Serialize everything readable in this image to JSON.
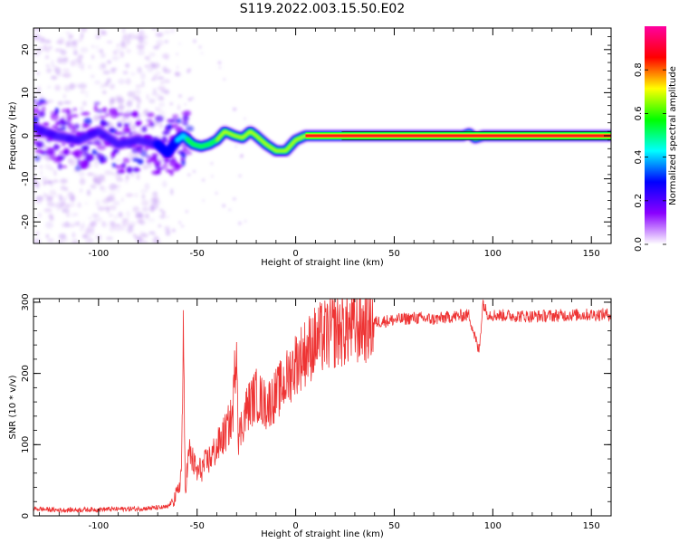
{
  "title": "S119.2022.003.15.50.E02",
  "chart_data": [
    {
      "type": "heatmap",
      "name": "spectrogram",
      "xlabel": "Height of straight line (km)",
      "ylabel": "Frequency (Hz)",
      "xlim": [
        -133,
        160
      ],
      "ylim": [
        -25,
        25
      ],
      "xticks": [
        -100,
        -50,
        0,
        50,
        100,
        150
      ],
      "xtick_labels": [
        "-100",
        "-50",
        "0",
        "50",
        "100",
        "150"
      ],
      "yticks": [
        -20,
        -10,
        0,
        10,
        20
      ],
      "ytick_labels": [
        "-20",
        "-10",
        "0",
        "10",
        "20"
      ],
      "colorbar": {
        "label": "Normalized spectral amplitude",
        "range": [
          0,
          1
        ],
        "ticks": [
          0.0,
          0.2,
          0.4,
          0.6,
          0.8
        ],
        "tick_labels": [
          "0.0",
          "0.2",
          "0.4",
          "0.6",
          "0.8"
        ],
        "colormap": [
          "#ffffff",
          "#8a00ff",
          "#0000ff",
          "#00ffff",
          "#00ff00",
          "#ffff00",
          "#ff0000",
          "#ff00a0"
        ]
      },
      "ridge_points": [
        {
          "x": -133,
          "y": 2
        },
        {
          "x": -122,
          "y": 0
        },
        {
          "x": -110,
          "y": -1
        },
        {
          "x": -100,
          "y": 1
        },
        {
          "x": -90,
          "y": -2
        },
        {
          "x": -80,
          "y": -1
        },
        {
          "x": -70,
          "y": -2
        },
        {
          "x": -65,
          "y": -4
        },
        {
          "x": -60,
          "y": -1
        },
        {
          "x": -57,
          "y": 0
        },
        {
          "x": -52,
          "y": -2
        },
        {
          "x": -48,
          "y": -2.5
        },
        {
          "x": -44,
          "y": -2
        },
        {
          "x": -40,
          "y": -1
        },
        {
          "x": -36,
          "y": 1
        },
        {
          "x": -31,
          "y": 0
        },
        {
          "x": -27,
          "y": -0.5
        },
        {
          "x": -23,
          "y": 1
        },
        {
          "x": -20,
          "y": 0
        },
        {
          "x": -15,
          "y": -2
        },
        {
          "x": -10,
          "y": -3.5
        },
        {
          "x": -5,
          "y": -3.5
        },
        {
          "x": 0,
          "y": -1
        },
        {
          "x": 5,
          "y": 0
        },
        {
          "x": 20,
          "y": 0
        },
        {
          "x": 60,
          "y": 0
        },
        {
          "x": 85,
          "y": 0
        },
        {
          "x": 88,
          "y": 0.5
        },
        {
          "x": 91,
          "y": -0.5
        },
        {
          "x": 95,
          "y": 0
        },
        {
          "x": 160,
          "y": 0
        }
      ]
    },
    {
      "type": "line",
      "name": "snr",
      "xlabel": "Height of straight line (km)",
      "ylabel": "SNR (10 * v/v)",
      "xlim": [
        -133,
        160
      ],
      "ylim": [
        0,
        305
      ],
      "xticks": [
        -100,
        -50,
        0,
        50,
        100,
        150
      ],
      "xtick_labels": [
        "-100",
        "-50",
        "0",
        "50",
        "100",
        "150"
      ],
      "yticks": [
        0,
        100,
        200,
        300
      ],
      "ytick_labels": [
        "0",
        "100",
        "200",
        "300"
      ],
      "line_color": "#ee3333",
      "x": [
        -133,
        -120,
        -100,
        -80,
        -65,
        -60,
        -58,
        -57,
        -56,
        -54,
        -50,
        -45,
        -40,
        -35,
        -32,
        -30,
        -29,
        -25,
        -20,
        -15,
        -10,
        -5,
        0,
        5,
        10,
        20,
        30,
        40,
        50,
        60,
        70,
        80,
        88,
        92,
        93,
        95,
        97,
        100,
        120,
        140,
        160
      ],
      "y": [
        10,
        8,
        9,
        10,
        12,
        30,
        60,
        240,
        40,
        90,
        60,
        75,
        95,
        120,
        140,
        250,
        110,
        150,
        170,
        155,
        170,
        190,
        215,
        230,
        245,
        260,
        265,
        272,
        275,
        278,
        276,
        280,
        282,
        240,
        230,
        300,
        285,
        282,
        280,
        282,
        283
      ]
    }
  ]
}
